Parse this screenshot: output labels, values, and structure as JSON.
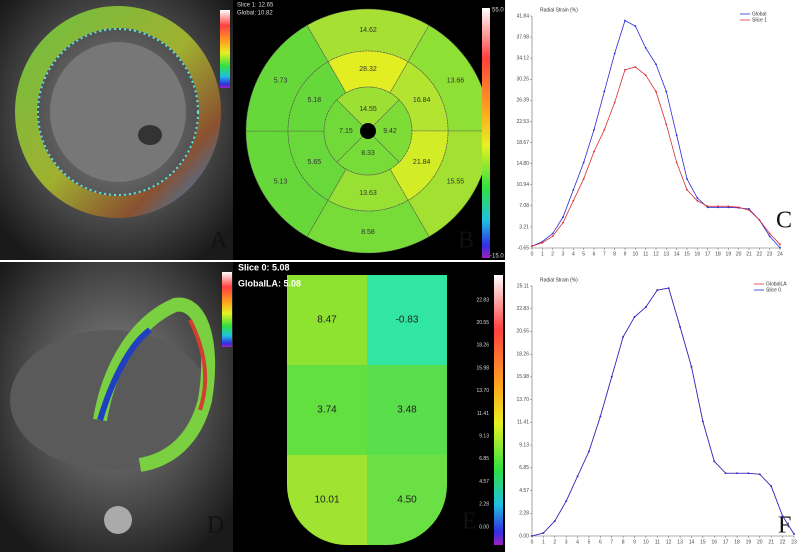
{
  "panel_labels": [
    "A",
    "B",
    "C",
    "D",
    "E",
    "F"
  ],
  "bullseye": {
    "header": [
      "Slice 1: 12.65",
      "Global: 10.82"
    ],
    "colorbar": [
      "55.0",
      "-15.0"
    ],
    "outer": [
      {
        "value": "14.62",
        "color": "#a6e032"
      },
      {
        "value": "13.66",
        "color": "#8fe034"
      },
      {
        "value": "15.55",
        "color": "#a2e032"
      },
      {
        "value": "8.58",
        "color": "#78dc38"
      },
      {
        "value": "5.13",
        "color": "#66d83a"
      },
      {
        "value": "5.73",
        "color": "#66d83a"
      }
    ],
    "middle": [
      {
        "value": "28.32",
        "color": "#e2ee22"
      },
      {
        "value": "16.84",
        "color": "#b2e430"
      },
      {
        "value": "21.84",
        "color": "#d2ec26"
      },
      {
        "value": "13.63",
        "color": "#98e034"
      },
      {
        "value": "5.65",
        "color": "#68d83a"
      },
      {
        "value": "5.18",
        "color": "#66d83a"
      }
    ],
    "inner": [
      {
        "value": "14.55",
        "color": "#9ce034"
      },
      {
        "value": "9.42",
        "color": "#7edc36"
      },
      {
        "value": "8.33",
        "color": "#78dc38"
      },
      {
        "value": "7.15",
        "color": "#72da38"
      }
    ]
  },
  "la_map": {
    "header": [
      "Slice 0: 5.08",
      "GlobalLA: 5.08"
    ],
    "colorbar": [
      "22.83",
      "20.55",
      "18.26",
      "15.98",
      "13.70",
      "11.41",
      "9.13",
      "6.85",
      "4.57",
      "2.28",
      "0.00"
    ],
    "cells": [
      {
        "value": "8.47",
        "color": "#8ee230"
      },
      {
        "value": "-0.83",
        "color": "#30e6a0"
      },
      {
        "value": "3.74",
        "color": "#62e040"
      },
      {
        "value": "3.48",
        "color": "#5ade4c"
      },
      {
        "value": "10.01",
        "color": "#9ee430"
      },
      {
        "value": "4.50",
        "color": "#6ae044"
      }
    ]
  },
  "chart_data": [
    {
      "type": "line",
      "y_label": "Radial Strain (%)",
      "x": [
        0,
        1,
        2,
        3,
        4,
        5,
        6,
        7,
        8,
        9,
        10,
        11,
        12,
        13,
        14,
        15,
        16,
        17,
        18,
        19,
        20,
        21,
        22,
        23,
        24
      ],
      "xticks": [
        0,
        1,
        2,
        3,
        4,
        5,
        6,
        7,
        8,
        9,
        10,
        11,
        12,
        13,
        14,
        15,
        16,
        17,
        18,
        19,
        20,
        21,
        22,
        23,
        24
      ],
      "xlim": [
        0,
        24
      ],
      "ylim": [
        -0.65,
        41.84
      ],
      "yticks": [
        -0.65,
        3.21,
        7.08,
        10.94,
        {
          "value": 14.8,
          "label": "14.80"
        },
        18.67,
        22.53,
        26.39,
        30.25,
        34.12,
        37.98,
        41.84
      ],
      "series": [
        {
          "name": "Global",
          "color": "#2a2ad8",
          "values": [
            -0.3,
            0.5,
            2,
            5,
            10,
            15,
            21,
            28,
            35,
            41,
            40,
            36,
            33,
            28,
            20,
            12,
            8.5,
            6.8,
            6.8,
            6.8,
            6.7,
            6.5,
            4.5,
            1.5,
            -0.6
          ]
        },
        {
          "name": "Slice 1",
          "color": "#d83030",
          "values": [
            -0.3,
            0.3,
            1.5,
            4,
            8,
            12,
            17,
            21,
            26,
            32,
            32.5,
            31,
            28,
            22,
            15,
            10,
            8,
            7,
            7,
            7,
            6.8,
            6.3,
            4.5,
            2,
            0
          ]
        }
      ]
    },
    {
      "type": "line",
      "y_label": "Radial Strain (%)",
      "x": [
        0,
        1,
        2,
        3,
        4,
        5,
        6,
        7,
        8,
        9,
        10,
        11,
        12,
        13,
        14,
        15,
        16,
        17,
        18,
        19,
        20,
        21,
        22,
        23
      ],
      "xticks": [
        0,
        1,
        2,
        3,
        4,
        5,
        6,
        7,
        8,
        9,
        10,
        11,
        12,
        13,
        14,
        15,
        16,
        17,
        18,
        19,
        20,
        21,
        22,
        23
      ],
      "xlim": [
        0,
        23
      ],
      "ylim": [
        0,
        25.11
      ],
      "yticks": [
        {
          "value": 0,
          "label": "0.00"
        },
        2.28,
        4.57,
        6.85,
        9.13,
        11.41,
        {
          "value": 13.7,
          "label": "13.70"
        },
        15.98,
        18.26,
        20.55,
        22.83,
        25.11
      ],
      "series": [
        {
          "name": "GlobalLA",
          "color": "#d83030",
          "values": [
            0,
            0.3,
            1.5,
            3.5,
            6,
            8.5,
            12,
            16,
            20,
            22,
            23,
            24.7,
            24.9,
            21,
            17,
            11.5,
            7.5,
            6.3,
            6.3,
            6.3,
            6.2,
            5,
            2,
            0.2
          ]
        },
        {
          "name": "Slice 0",
          "color": "#2a2ad8",
          "values": [
            0,
            0.3,
            1.5,
            3.5,
            6,
            8.5,
            12,
            16,
            20,
            22,
            23,
            24.7,
            24.9,
            21,
            17,
            11.5,
            7.5,
            6.3,
            6.3,
            6.3,
            6.2,
            5,
            2,
            0.2
          ]
        }
      ]
    }
  ]
}
